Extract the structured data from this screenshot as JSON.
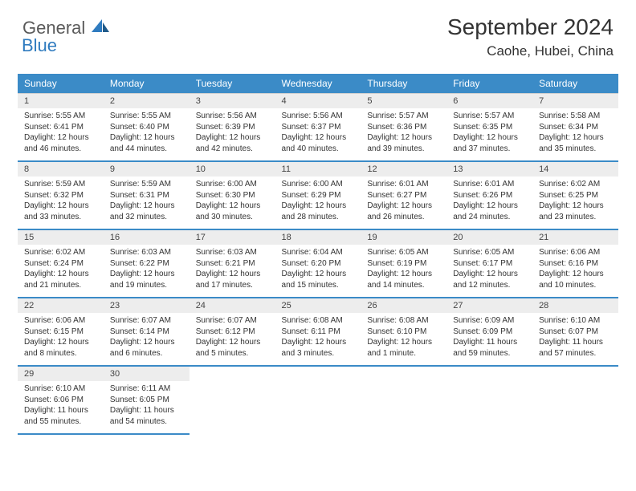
{
  "header": {
    "logo_general": "General",
    "logo_blue": "Blue",
    "month_title": "September 2024",
    "location": "Caohe, Hubei, China"
  },
  "style": {
    "header_bg": "#3b8bc7",
    "header_text": "#ffffff",
    "daynum_bg": "#ededed",
    "border_color": "#3b8bc7",
    "body_text": "#333333",
    "logo_gray": "#5a5a5a",
    "logo_blue": "#2f7bbf",
    "page_bg": "#ffffff"
  },
  "daynames": [
    "Sunday",
    "Monday",
    "Tuesday",
    "Wednesday",
    "Thursday",
    "Friday",
    "Saturday"
  ],
  "weeks": [
    {
      "nums": [
        "1",
        "2",
        "3",
        "4",
        "5",
        "6",
        "7"
      ],
      "cells": [
        {
          "sunrise": "Sunrise: 5:55 AM",
          "sunset": "Sunset: 6:41 PM",
          "day1": "Daylight: 12 hours",
          "day2": "and 46 minutes."
        },
        {
          "sunrise": "Sunrise: 5:55 AM",
          "sunset": "Sunset: 6:40 PM",
          "day1": "Daylight: 12 hours",
          "day2": "and 44 minutes."
        },
        {
          "sunrise": "Sunrise: 5:56 AM",
          "sunset": "Sunset: 6:39 PM",
          "day1": "Daylight: 12 hours",
          "day2": "and 42 minutes."
        },
        {
          "sunrise": "Sunrise: 5:56 AM",
          "sunset": "Sunset: 6:37 PM",
          "day1": "Daylight: 12 hours",
          "day2": "and 40 minutes."
        },
        {
          "sunrise": "Sunrise: 5:57 AM",
          "sunset": "Sunset: 6:36 PM",
          "day1": "Daylight: 12 hours",
          "day2": "and 39 minutes."
        },
        {
          "sunrise": "Sunrise: 5:57 AM",
          "sunset": "Sunset: 6:35 PM",
          "day1": "Daylight: 12 hours",
          "day2": "and 37 minutes."
        },
        {
          "sunrise": "Sunrise: 5:58 AM",
          "sunset": "Sunset: 6:34 PM",
          "day1": "Daylight: 12 hours",
          "day2": "and 35 minutes."
        }
      ]
    },
    {
      "nums": [
        "8",
        "9",
        "10",
        "11",
        "12",
        "13",
        "14"
      ],
      "cells": [
        {
          "sunrise": "Sunrise: 5:59 AM",
          "sunset": "Sunset: 6:32 PM",
          "day1": "Daylight: 12 hours",
          "day2": "and 33 minutes."
        },
        {
          "sunrise": "Sunrise: 5:59 AM",
          "sunset": "Sunset: 6:31 PM",
          "day1": "Daylight: 12 hours",
          "day2": "and 32 minutes."
        },
        {
          "sunrise": "Sunrise: 6:00 AM",
          "sunset": "Sunset: 6:30 PM",
          "day1": "Daylight: 12 hours",
          "day2": "and 30 minutes."
        },
        {
          "sunrise": "Sunrise: 6:00 AM",
          "sunset": "Sunset: 6:29 PM",
          "day1": "Daylight: 12 hours",
          "day2": "and 28 minutes."
        },
        {
          "sunrise": "Sunrise: 6:01 AM",
          "sunset": "Sunset: 6:27 PM",
          "day1": "Daylight: 12 hours",
          "day2": "and 26 minutes."
        },
        {
          "sunrise": "Sunrise: 6:01 AM",
          "sunset": "Sunset: 6:26 PM",
          "day1": "Daylight: 12 hours",
          "day2": "and 24 minutes."
        },
        {
          "sunrise": "Sunrise: 6:02 AM",
          "sunset": "Sunset: 6:25 PM",
          "day1": "Daylight: 12 hours",
          "day2": "and 23 minutes."
        }
      ]
    },
    {
      "nums": [
        "15",
        "16",
        "17",
        "18",
        "19",
        "20",
        "21"
      ],
      "cells": [
        {
          "sunrise": "Sunrise: 6:02 AM",
          "sunset": "Sunset: 6:24 PM",
          "day1": "Daylight: 12 hours",
          "day2": "and 21 minutes."
        },
        {
          "sunrise": "Sunrise: 6:03 AM",
          "sunset": "Sunset: 6:22 PM",
          "day1": "Daylight: 12 hours",
          "day2": "and 19 minutes."
        },
        {
          "sunrise": "Sunrise: 6:03 AM",
          "sunset": "Sunset: 6:21 PM",
          "day1": "Daylight: 12 hours",
          "day2": "and 17 minutes."
        },
        {
          "sunrise": "Sunrise: 6:04 AM",
          "sunset": "Sunset: 6:20 PM",
          "day1": "Daylight: 12 hours",
          "day2": "and 15 minutes."
        },
        {
          "sunrise": "Sunrise: 6:05 AM",
          "sunset": "Sunset: 6:19 PM",
          "day1": "Daylight: 12 hours",
          "day2": "and 14 minutes."
        },
        {
          "sunrise": "Sunrise: 6:05 AM",
          "sunset": "Sunset: 6:17 PM",
          "day1": "Daylight: 12 hours",
          "day2": "and 12 minutes."
        },
        {
          "sunrise": "Sunrise: 6:06 AM",
          "sunset": "Sunset: 6:16 PM",
          "day1": "Daylight: 12 hours",
          "day2": "and 10 minutes."
        }
      ]
    },
    {
      "nums": [
        "22",
        "23",
        "24",
        "25",
        "26",
        "27",
        "28"
      ],
      "cells": [
        {
          "sunrise": "Sunrise: 6:06 AM",
          "sunset": "Sunset: 6:15 PM",
          "day1": "Daylight: 12 hours",
          "day2": "and 8 minutes."
        },
        {
          "sunrise": "Sunrise: 6:07 AM",
          "sunset": "Sunset: 6:14 PM",
          "day1": "Daylight: 12 hours",
          "day2": "and 6 minutes."
        },
        {
          "sunrise": "Sunrise: 6:07 AM",
          "sunset": "Sunset: 6:12 PM",
          "day1": "Daylight: 12 hours",
          "day2": "and 5 minutes."
        },
        {
          "sunrise": "Sunrise: 6:08 AM",
          "sunset": "Sunset: 6:11 PM",
          "day1": "Daylight: 12 hours",
          "day2": "and 3 minutes."
        },
        {
          "sunrise": "Sunrise: 6:08 AM",
          "sunset": "Sunset: 6:10 PM",
          "day1": "Daylight: 12 hours",
          "day2": "and 1 minute."
        },
        {
          "sunrise": "Sunrise: 6:09 AM",
          "sunset": "Sunset: 6:09 PM",
          "day1": "Daylight: 11 hours",
          "day2": "and 59 minutes."
        },
        {
          "sunrise": "Sunrise: 6:10 AM",
          "sunset": "Sunset: 6:07 PM",
          "day1": "Daylight: 11 hours",
          "day2": "and 57 minutes."
        }
      ]
    },
    {
      "nums": [
        "29",
        "30",
        "",
        "",
        "",
        "",
        ""
      ],
      "cells": [
        {
          "sunrise": "Sunrise: 6:10 AM",
          "sunset": "Sunset: 6:06 PM",
          "day1": "Daylight: 11 hours",
          "day2": "and 55 minutes."
        },
        {
          "sunrise": "Sunrise: 6:11 AM",
          "sunset": "Sunset: 6:05 PM",
          "day1": "Daylight: 11 hours",
          "day2": "and 54 minutes."
        },
        {
          "sunrise": "",
          "sunset": "",
          "day1": "",
          "day2": ""
        },
        {
          "sunrise": "",
          "sunset": "",
          "day1": "",
          "day2": ""
        },
        {
          "sunrise": "",
          "sunset": "",
          "day1": "",
          "day2": ""
        },
        {
          "sunrise": "",
          "sunset": "",
          "day1": "",
          "day2": ""
        },
        {
          "sunrise": "",
          "sunset": "",
          "day1": "",
          "day2": ""
        }
      ]
    }
  ]
}
